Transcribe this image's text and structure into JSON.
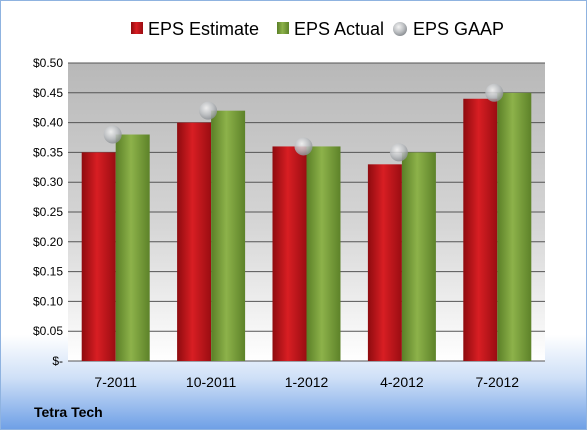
{
  "chart_data": {
    "type": "bar",
    "company": "Tetra Tech",
    "categories": [
      "7-2011",
      "10-2011",
      "1-2012",
      "4-2012",
      "7-2012"
    ],
    "series": [
      {
        "name": "EPS Estimate",
        "kind": "bar",
        "color": "#c8161b",
        "values": [
          0.35,
          0.4,
          0.36,
          0.33,
          0.44
        ]
      },
      {
        "name": "EPS Actual",
        "kind": "bar",
        "color": "#7aa23a",
        "values": [
          0.38,
          0.42,
          0.36,
          0.35,
          0.45
        ]
      },
      {
        "name": "EPS GAAP",
        "kind": "marker",
        "color": "#b8bcc0",
        "values": [
          0.38,
          0.42,
          0.36,
          0.35,
          0.45
        ]
      }
    ],
    "y_ticks": [
      0.0,
      0.05,
      0.1,
      0.15,
      0.2,
      0.25,
      0.3,
      0.35,
      0.4,
      0.45,
      0.5
    ],
    "y_tick_labels": [
      "$-",
      "$0.05",
      "$0.10",
      "$0.15",
      "$0.20",
      "$0.25",
      "$0.30",
      "$0.35",
      "$0.40",
      "$0.45",
      "$0.50"
    ],
    "ylim": [
      0,
      0.5
    ],
    "grid": true,
    "legend_position": "top"
  }
}
